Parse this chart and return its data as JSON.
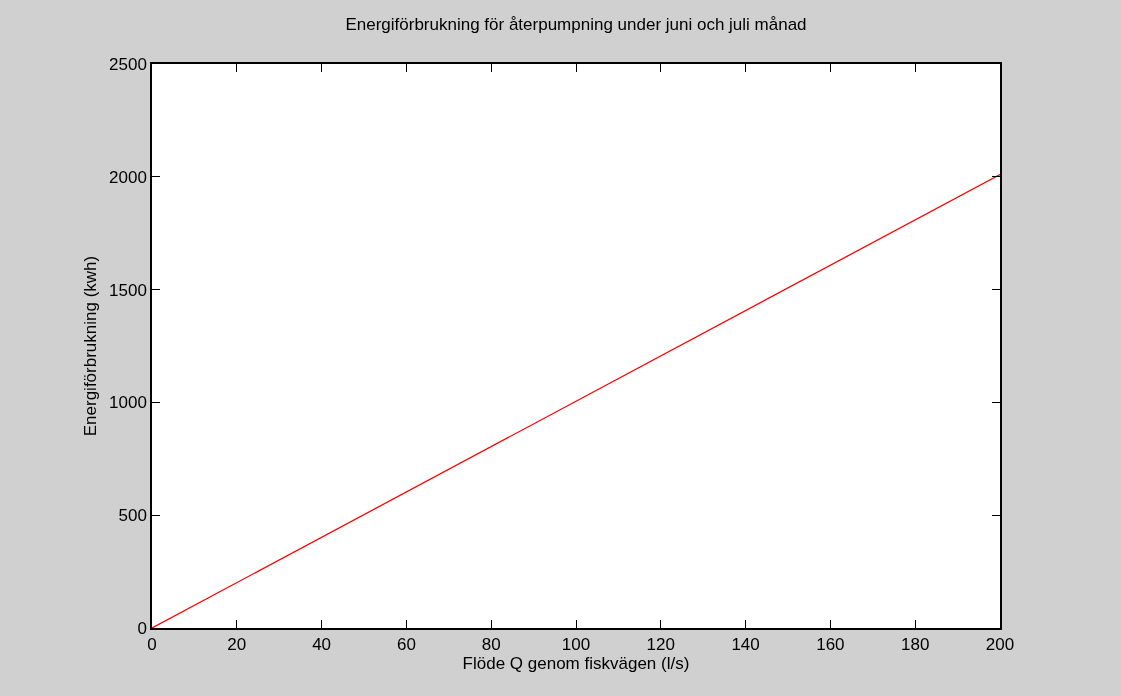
{
  "chart_data": {
    "type": "line",
    "title": "Energiförbrukning för återpumpning under juni och juli månad",
    "xlabel": "Flöde Q genom fiskvägen (l/s)",
    "ylabel": "Energiförbrukning (kwh)",
    "x": [
      0,
      200
    ],
    "series": [
      {
        "color": "#ff0000",
        "values": [
          0,
          2010
        ]
      }
    ],
    "xlim": [
      0,
      200
    ],
    "xticks": [
      0,
      20,
      40,
      60,
      80,
      100,
      120,
      140,
      160,
      180,
      200
    ],
    "ylim": [
      0,
      2500
    ],
    "yticks": [
      0,
      500,
      1000,
      1500,
      2000,
      2500
    ],
    "line_style": "solid",
    "marker": "none"
  }
}
